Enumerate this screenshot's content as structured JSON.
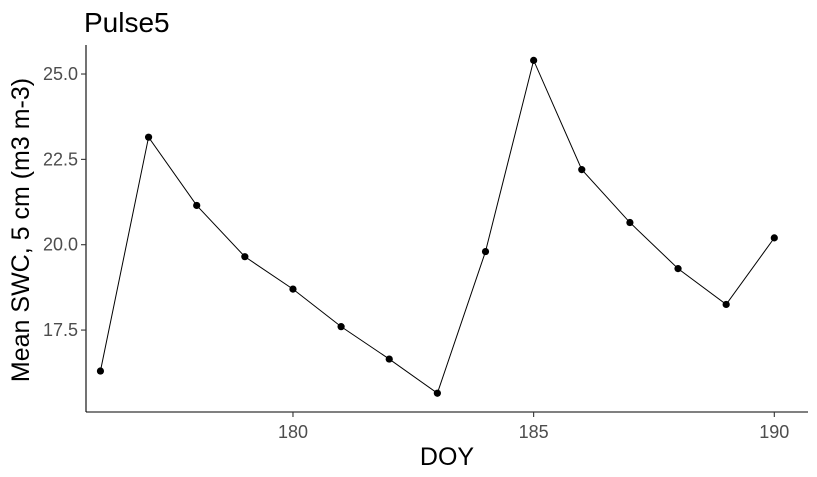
{
  "chart_data": {
    "type": "line",
    "title": "Pulse5",
    "xlabel": "DOY",
    "ylabel": "Mean SWC, 5 cm (m3 m-3)",
    "x": [
      176,
      177,
      178,
      179,
      180,
      181,
      182,
      183,
      184,
      185,
      186,
      187,
      188,
      189,
      190
    ],
    "y": [
      16.3,
      23.15,
      21.15,
      19.65,
      18.7,
      17.6,
      16.65,
      15.65,
      19.8,
      25.4,
      22.2,
      20.65,
      19.3,
      18.25,
      20.2
    ],
    "xticks": [
      180,
      185,
      190
    ],
    "xtick_labels": [
      "180",
      "185",
      "190"
    ],
    "yticks": [
      17.5,
      20.0,
      22.5,
      25.0
    ],
    "ytick_labels": [
      "17.5",
      "20.0",
      "22.5",
      "25.0"
    ],
    "xlim": [
      175.7,
      190.7
    ],
    "ylim": [
      15.1,
      25.85
    ],
    "grid": false,
    "legend": "none",
    "series_color": "#000000"
  }
}
